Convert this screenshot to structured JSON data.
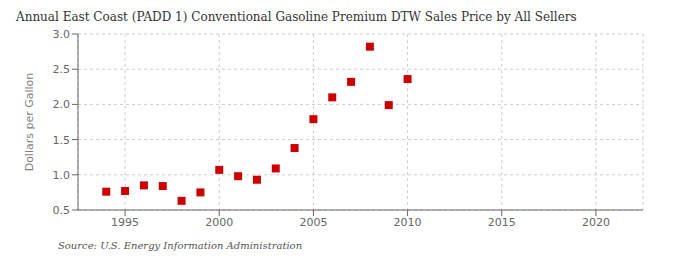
{
  "chart_data": {
    "type": "scatter",
    "title": "Annual East Coast (PADD 1) Conventional Gasoline Premium DTW Sales Price by All Sellers",
    "ylabel": "Dollars per Gallon",
    "source": "Source: U.S. Energy Information Administration",
    "x": [
      1994,
      1995,
      1996,
      1997,
      1998,
      1999,
      2000,
      2001,
      2002,
      2003,
      2004,
      2005,
      2006,
      2007,
      2008,
      2009,
      2010
    ],
    "values": [
      0.76,
      0.77,
      0.85,
      0.84,
      0.63,
      0.75,
      1.07,
      0.98,
      0.93,
      1.09,
      1.38,
      1.79,
      2.1,
      2.32,
      2.82,
      1.99,
      2.36
    ],
    "xlim": [
      1992.5,
      2022.5
    ],
    "ylim": [
      0.5,
      3.0
    ],
    "xticks": [
      1995,
      2000,
      2005,
      2010,
      2015,
      2020
    ],
    "yticks": [
      0.5,
      {
        "value": 1.0,
        "label": "1.0"
      },
      1.5,
      {
        "value": 2.0,
        "label": "2.0"
      },
      2.5,
      {
        "value": 3.0,
        "label": "3.0"
      }
    ],
    "color": "#cc0000",
    "marker": "square",
    "grid": true
  }
}
